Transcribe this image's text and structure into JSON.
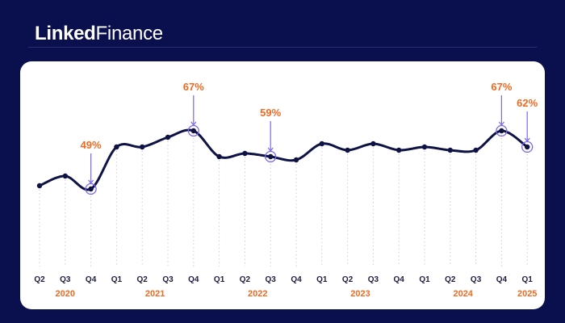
{
  "header": {
    "brand_bold": "Linked",
    "brand_regular": "Finance"
  },
  "colors": {
    "background": "#0a0f4d",
    "line": "#0e1245",
    "accent": "#f06a22",
    "highlight": "#7b68ee",
    "grid": "#c9cdd8"
  },
  "chart_data": {
    "type": "line",
    "title": "",
    "xlabel": "",
    "ylabel": "",
    "grid": "vertical dotted",
    "ylim": [
      40,
      80
    ],
    "categories": [
      "Q2",
      "Q3",
      "Q4",
      "Q1",
      "Q2",
      "Q3",
      "Q4",
      "Q1",
      "Q2",
      "Q3",
      "Q4",
      "Q1",
      "Q2",
      "Q3",
      "Q4",
      "Q1",
      "Q2",
      "Q3",
      "Q4",
      "Q1"
    ],
    "years": [
      {
        "label": "2020",
        "index": 1
      },
      {
        "label": "2021",
        "index": 4.5
      },
      {
        "label": "2022",
        "index": 8.5
      },
      {
        "label": "2023",
        "index": 12.5
      },
      {
        "label": "2024",
        "index": 16.5
      },
      {
        "label": "2025",
        "index": 19
      }
    ],
    "values": [
      50,
      53,
      49,
      62,
      62,
      65,
      67,
      59,
      60,
      59,
      58,
      63,
      61,
      63,
      61,
      62,
      61,
      61,
      67,
      62
    ],
    "annotations": [
      {
        "index": 2,
        "label": "49%"
      },
      {
        "index": 6,
        "label": "67%"
      },
      {
        "index": 9,
        "label": "59%"
      },
      {
        "index": 18,
        "label": "67%"
      },
      {
        "index": 19,
        "label": "62%"
      }
    ]
  }
}
